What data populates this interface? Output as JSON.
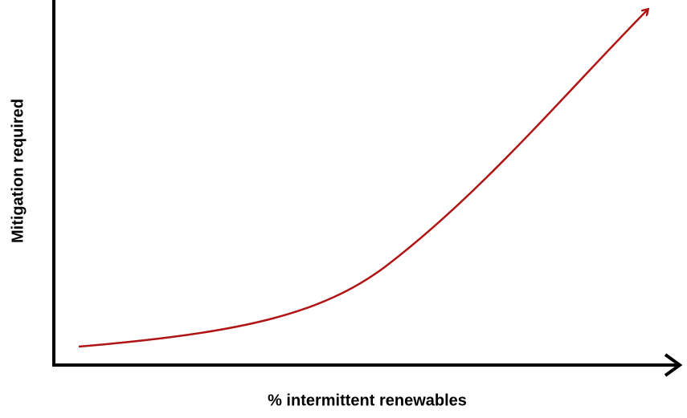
{
  "axes": {
    "x_label": "% intermittent renewables",
    "y_label": "Mitigation required"
  }
}
